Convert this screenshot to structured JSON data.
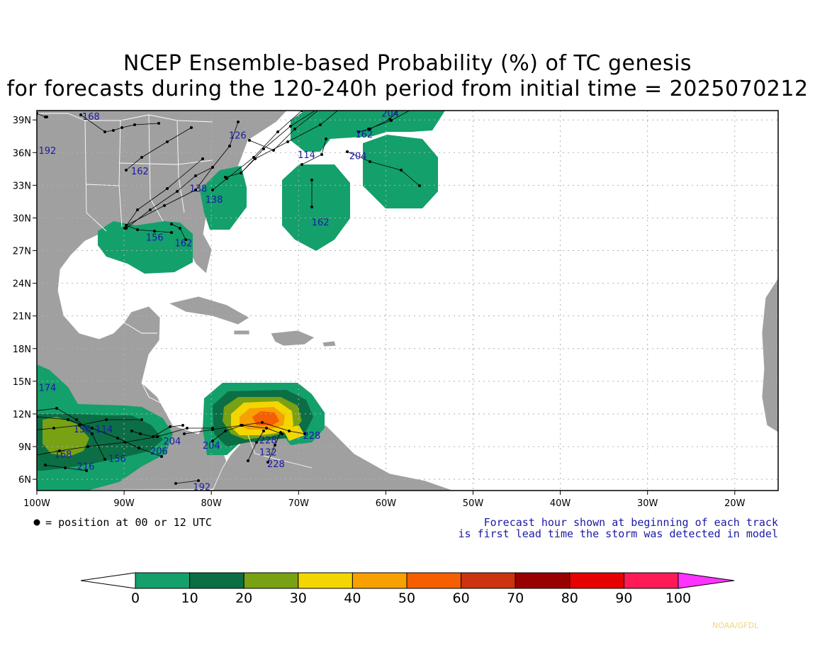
{
  "title": {
    "line1": "NCEP Ensemble-based Probability (%) of TC genesis",
    "line2": "for forecasts during the 120-240h period from initial time = 2025070212"
  },
  "map": {
    "lat_labels": [
      "39N",
      "36N",
      "33N",
      "30N",
      "27N",
      "24N",
      "21N",
      "18N",
      "15N",
      "12N",
      "9N",
      "6N"
    ],
    "lon_labels": [
      "100W",
      "90W",
      "80W",
      "70W",
      "60W",
      "50W",
      "40W",
      "30W",
      "20W"
    ],
    "ocean_color": "#ffffff",
    "land_color": "#a0a0a0",
    "grid": "dotted"
  },
  "legend": {
    "position_note": "= position at 00 or 12 UTC",
    "forecast_hour_line1": "Forecast hour shown at beginning of each track",
    "forecast_hour_line2": "is first lead time the storm was detected in model"
  },
  "colorbar": {
    "ticks": [
      "0",
      "10",
      "20",
      "30",
      "40",
      "50",
      "60",
      "70",
      "80",
      "90",
      "100"
    ],
    "colors": [
      "#ffffff",
      "#14a06a",
      "#0b6e44",
      "#79a114",
      "#f3d600",
      "#f7a000",
      "#f65f00",
      "#cc3311",
      "#990000",
      "#e60000",
      "#ff1a55",
      "#ff33ff"
    ]
  },
  "track_labels": [
    {
      "text": "168",
      "lon": -94.8,
      "lat": 39.0
    },
    {
      "text": "192",
      "lon": -99.8,
      "lat": 35.9
    },
    {
      "text": "162",
      "lon": -89.2,
      "lat": 34.0
    },
    {
      "text": "126",
      "lon": -78.0,
      "lat": 37.3
    },
    {
      "text": "114",
      "lon": -70.1,
      "lat": 35.5
    },
    {
      "text": "204",
      "lon": -60.5,
      "lat": 39.3
    },
    {
      "text": "162",
      "lon": -63.5,
      "lat": 37.4
    },
    {
      "text": "204",
      "lon": -64.2,
      "lat": 35.4
    },
    {
      "text": "138",
      "lon": -82.5,
      "lat": 32.4
    },
    {
      "text": "138",
      "lon": -80.7,
      "lat": 31.4
    },
    {
      "text": "162",
      "lon": -68.5,
      "lat": 29.3
    },
    {
      "text": "156",
      "lon": -87.5,
      "lat": 27.9
    },
    {
      "text": "162",
      "lon": -84.2,
      "lat": 27.4
    },
    {
      "text": "174",
      "lon": -99.8,
      "lat": 14.1
    },
    {
      "text": "114",
      "lon": -93.3,
      "lat": 10.3
    },
    {
      "text": "156",
      "lon": -95.8,
      "lat": 10.3
    },
    {
      "text": "204",
      "lon": -85.5,
      "lat": 9.2
    },
    {
      "text": "206",
      "lon": -87.0,
      "lat": 8.3
    },
    {
      "text": "156",
      "lon": -91.8,
      "lat": 7.6
    },
    {
      "text": "168",
      "lon": -98.0,
      "lat": 8.0
    },
    {
      "text": "216",
      "lon": -95.4,
      "lat": 6.9
    },
    {
      "text": "192",
      "lon": -82.1,
      "lat": 5.0
    },
    {
      "text": "204",
      "lon": -81.0,
      "lat": 8.8
    },
    {
      "text": "132",
      "lon": -74.5,
      "lat": 8.2
    },
    {
      "text": "228",
      "lon": -73.6,
      "lat": 7.1
    },
    {
      "text": "228",
      "lon": -74.5,
      "lat": 9.3
    },
    {
      "text": "228",
      "lon": -69.5,
      "lat": 9.7
    }
  ]
}
